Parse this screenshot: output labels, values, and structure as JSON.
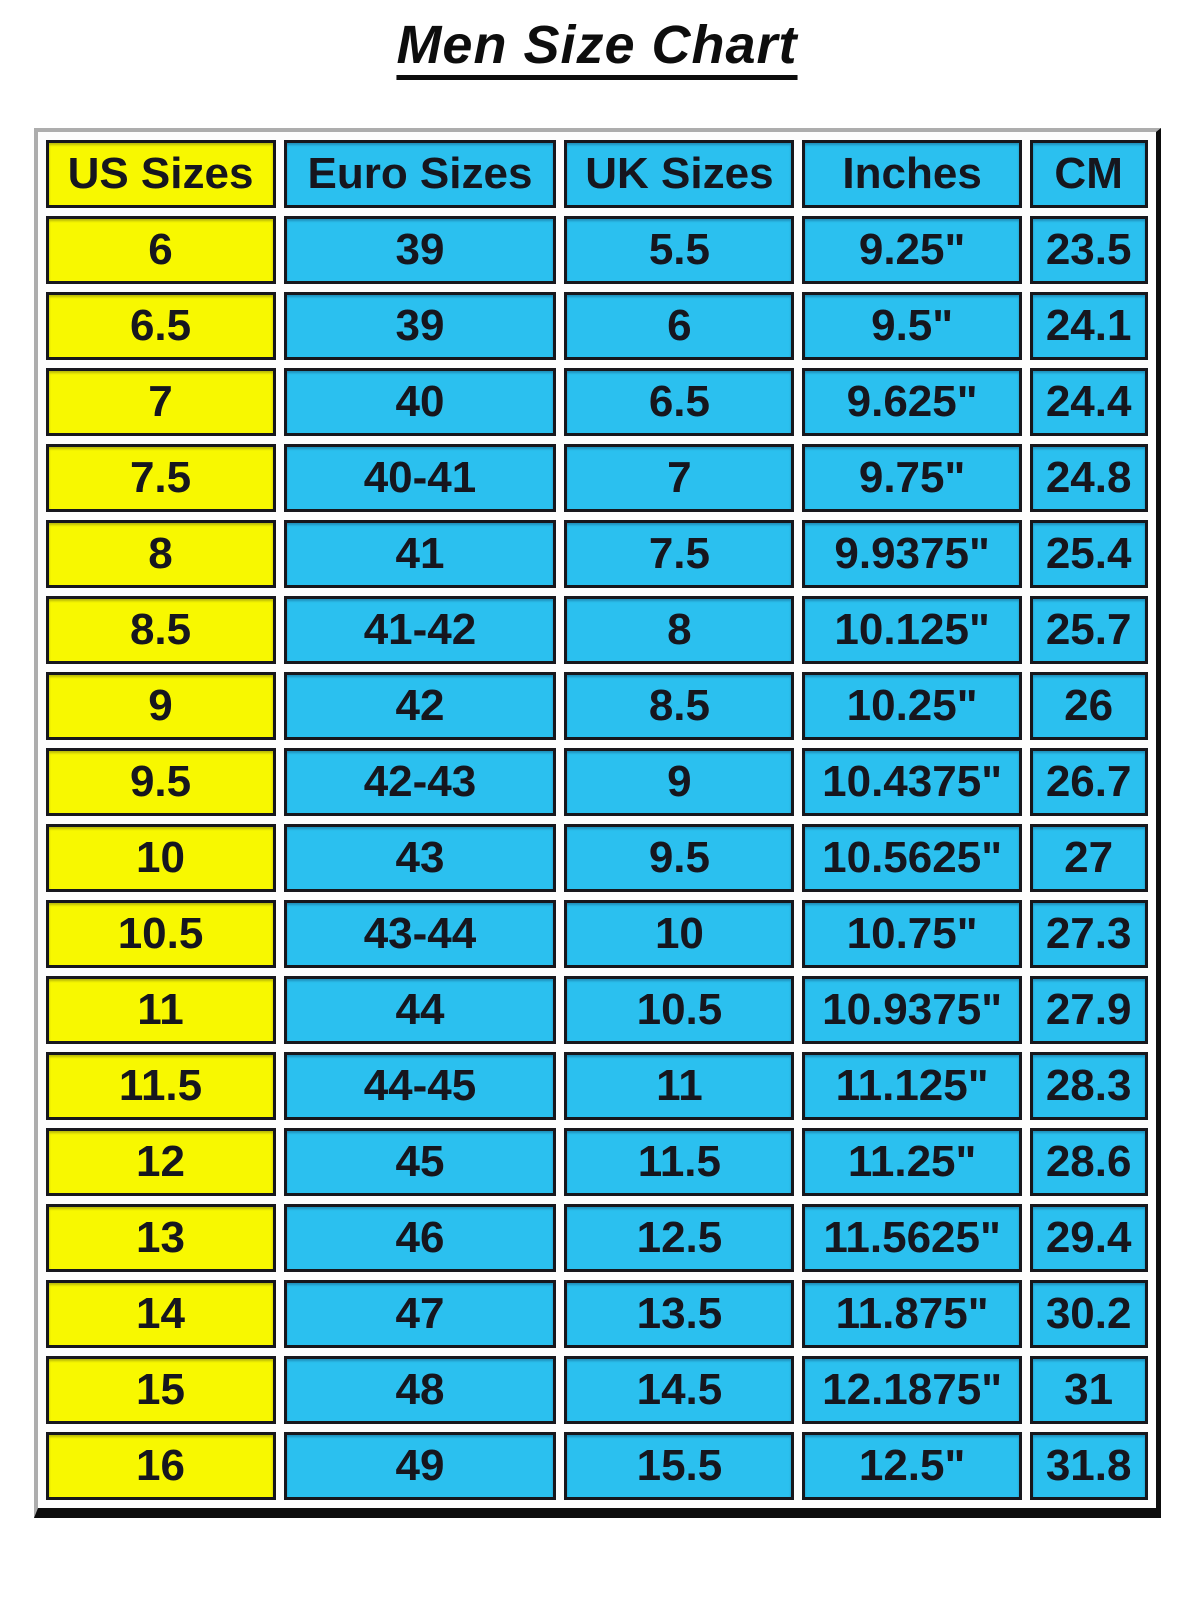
{
  "title": "Men Size Chart",
  "colors": {
    "yellow_column": "#f8f800",
    "blue_column": "#2bc0ef",
    "text": "#16161e",
    "frame_light": "#adadad",
    "frame_dark": "#0d0d0d"
  },
  "chart_data": {
    "type": "table",
    "title": "Men Size Chart",
    "columns": [
      "US Sizes",
      "Euro Sizes",
      "UK Sizes",
      "Inches",
      "CM"
    ],
    "rows": [
      [
        "6",
        "39",
        "5.5",
        "9.25\"",
        "23.5"
      ],
      [
        "6.5",
        "39",
        "6",
        "9.5\"",
        "24.1"
      ],
      [
        "7",
        "40",
        "6.5",
        "9.625\"",
        "24.4"
      ],
      [
        "7.5",
        "40-41",
        "7",
        "9.75\"",
        "24.8"
      ],
      [
        "8",
        "41",
        "7.5",
        "9.9375\"",
        "25.4"
      ],
      [
        "8.5",
        "41-42",
        "8",
        "10.125\"",
        "25.7"
      ],
      [
        "9",
        "42",
        "8.5",
        "10.25\"",
        "26"
      ],
      [
        "9.5",
        "42-43",
        "9",
        "10.4375\"",
        "26.7"
      ],
      [
        "10",
        "43",
        "9.5",
        "10.5625\"",
        "27"
      ],
      [
        "10.5",
        "43-44",
        "10",
        "10.75\"",
        "27.3"
      ],
      [
        "11",
        "44",
        "10.5",
        "10.9375\"",
        "27.9"
      ],
      [
        "11.5",
        "44-45",
        "11",
        "11.125\"",
        "28.3"
      ],
      [
        "12",
        "45",
        "11.5",
        "11.25\"",
        "28.6"
      ],
      [
        "13",
        "46",
        "12.5",
        "11.5625\"",
        "29.4"
      ],
      [
        "14",
        "47",
        "13.5",
        "11.875\"",
        "30.2"
      ],
      [
        "15",
        "48",
        "14.5",
        "12.1875\"",
        "31"
      ],
      [
        "16",
        "49",
        "15.5",
        "12.5\"",
        "31.8"
      ]
    ]
  }
}
